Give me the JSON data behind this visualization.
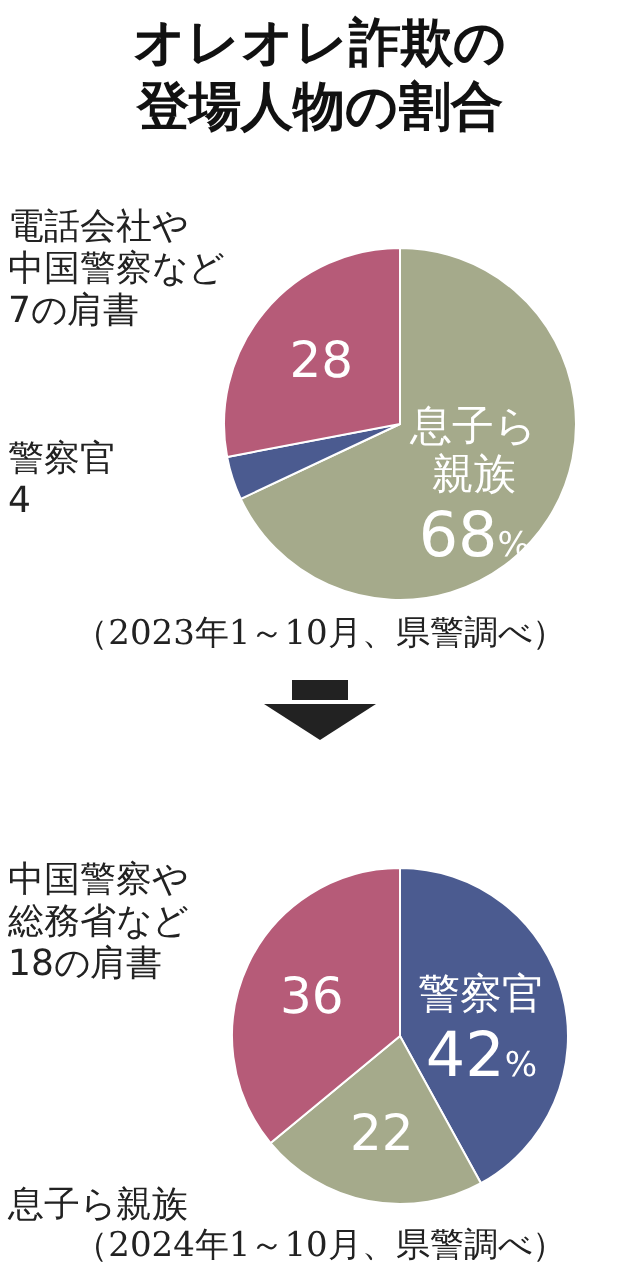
{
  "chart_data": [
    {
      "type": "pie",
      "title": "オレオレ詐欺の登場人物の割合",
      "categories": [
        "息子ら親族",
        "警察官",
        "電話会社や中国警察など7の肩書"
      ],
      "values": [
        68,
        4,
        28
      ],
      "colors": [
        "#a5aa8b",
        "#4b5b90",
        "#b65b78"
      ],
      "value_labels": [
        "68%",
        "4",
        "28"
      ],
      "annotations": [
        "（2023年1～10月、県警調べ）"
      ]
    },
    {
      "type": "pie",
      "categories": [
        "警察官",
        "息子ら親族",
        "中国警察や総務省など18の肩書"
      ],
      "values": [
        42,
        22,
        36
      ],
      "colors": [
        "#4b5b90",
        "#a5aa8b",
        "#b65b78"
      ],
      "value_labels": [
        "42%",
        "22",
        "36"
      ],
      "annotations": [
        "（2024年1～10月、県警調べ）"
      ]
    }
  ]
}
